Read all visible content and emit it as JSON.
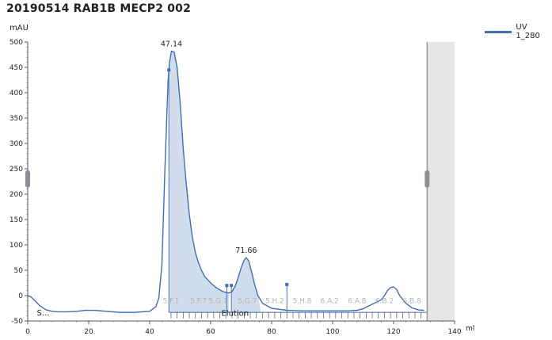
{
  "window": {
    "title": "20190514 RAB1B MECP2 002"
  },
  "legend": {
    "label": "UV 1_280",
    "color": "#3f6fb0"
  },
  "chart_data": {
    "type": "line",
    "title": "20190514 RAB1B MECP2 002",
    "xlabel": "ml",
    "ylabel": "mAU",
    "xlim": [
      0,
      140
    ],
    "ylim": [
      -50,
      500
    ],
    "x_ticks": [
      "0",
      "20",
      "40",
      "60",
      "80",
      "100",
      "120",
      "140"
    ],
    "y_ticks": [
      "-50",
      "0",
      "50",
      "100",
      "150",
      "200",
      "250",
      "300",
      "350",
      "400",
      "450",
      "500"
    ],
    "grid": false,
    "legend_position": "top-right",
    "series": [
      {
        "name": "UV 1_280",
        "color": "#3f6fb0",
        "x": [
          0,
          1,
          2,
          4,
          6,
          8,
          10,
          13,
          16,
          19,
          22,
          26,
          30,
          35,
          40,
          42,
          43,
          44,
          45,
          46,
          46.5,
          47.14,
          48,
          49,
          50,
          51,
          52,
          53,
          54,
          55,
          56,
          57,
          58,
          60,
          62,
          64,
          66,
          67,
          68,
          69,
          70,
          71,
          71.66,
          72.5,
          73.5,
          74.5,
          75.5,
          77,
          80,
          85,
          90,
          95,
          100,
          105,
          108,
          110,
          112,
          114,
          116,
          117,
          118,
          119,
          120,
          121,
          122,
          124,
          126,
          128,
          130
        ],
        "y": [
          0,
          -2,
          -8,
          -20,
          -28,
          -31,
          -32,
          -32,
          -31,
          -29,
          -29,
          -31,
          -33,
          -33,
          -31,
          -22,
          -5,
          60,
          250,
          420,
          460,
          482,
          480,
          450,
          380,
          290,
          220,
          160,
          115,
          85,
          65,
          50,
          38,
          25,
          15,
          8,
          5,
          8,
          18,
          35,
          55,
          70,
          75,
          68,
          45,
          20,
          0,
          -15,
          -25,
          -29,
          -30,
          -30,
          -30,
          -30,
          -29,
          -26,
          -20,
          -14,
          -8,
          0,
          10,
          16,
          17,
          12,
          0,
          -15,
          -24,
          -28,
          -29
        ]
      }
    ],
    "annotations": [
      {
        "text": "47.14",
        "x": 47.14,
        "y": 482
      },
      {
        "text": "71.66",
        "x": 71.66,
        "y": 75
      }
    ],
    "fractions": [
      "5.F.1",
      "5.F.7",
      "5.G.1",
      "5.G.7",
      "5.H.2",
      "5.H.8",
      "6.A.2",
      "6.A.8",
      "6.B.2",
      "6.B.8"
    ],
    "event_labels": [
      "S...",
      "Elution"
    ]
  }
}
